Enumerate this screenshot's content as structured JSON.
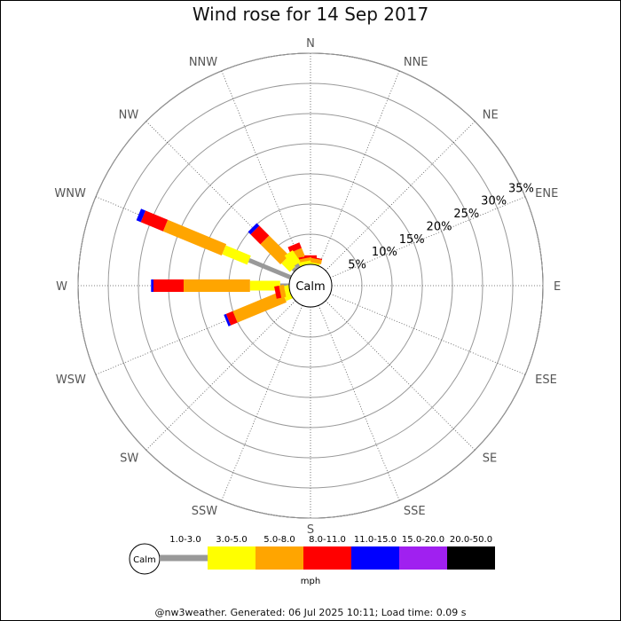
{
  "title": "Wind rose for 14 Sep 2017",
  "footer": "@nw3weather.  Generated: 06 Jul 2025 10:11; Load time: 0.09 s",
  "chart_data": {
    "type": "wind-rose",
    "title": "Wind rose for 14 Sep 2017",
    "center_label": "Calm",
    "directions": [
      "N",
      "NNE",
      "NE",
      "ENE",
      "E",
      "ESE",
      "SE",
      "SSE",
      "S",
      "SSW",
      "SW",
      "WSW",
      "W",
      "WNW",
      "NW",
      "NNW"
    ],
    "radial_ticks": [
      "5%",
      "10%",
      "15%",
      "20%",
      "25%",
      "30%",
      "35%"
    ],
    "radial_max_percent": 35,
    "bins": [
      {
        "label": "1.0-3.0",
        "color": "#999999"
      },
      {
        "label": "3.0-5.0",
        "color": "#ffff00"
      },
      {
        "label": "5.0-8.0",
        "color": "#ffa500"
      },
      {
        "label": "8.0-11.0",
        "color": "#ff0000"
      },
      {
        "label": "11.0-15.0",
        "color": "#0000ff"
      },
      {
        "label": "15.0-20.0",
        "color": "#a020f0"
      },
      {
        "label": "20.0-50.0",
        "color": "#000000"
      }
    ],
    "legend_unit": "mph",
    "frequencies_percent": {
      "N": [
        0,
        0.5,
        0.6,
        0.4,
        0,
        0,
        0
      ],
      "NNE": [
        0,
        0,
        0,
        0,
        0,
        0,
        0
      ],
      "NE": [
        0,
        0,
        0,
        0,
        0,
        0,
        0
      ],
      "ENE": [
        0,
        0,
        0,
        0,
        0,
        0,
        0
      ],
      "E": [
        0,
        0,
        0,
        0,
        0,
        0,
        0
      ],
      "ESE": [
        0,
        0,
        0,
        0,
        0,
        0,
        0
      ],
      "SE": [
        0,
        0,
        0,
        0,
        0,
        0,
        0
      ],
      "SSE": [
        0,
        0,
        0,
        0,
        0,
        0,
        0
      ],
      "S": [
        0,
        0,
        0,
        0,
        0,
        0,
        0
      ],
      "SSW": [
        0,
        0,
        0,
        0,
        0,
        0,
        0
      ],
      "SW": [
        0,
        0,
        0,
        0,
        0,
        0,
        0
      ],
      "WSW": [
        0,
        1.2,
        8.8,
        1.2,
        0.4,
        0,
        0
      ],
      "W": [
        1.5,
        5.0,
        11.0,
        5.0,
        0.4,
        0,
        0
      ],
      "WNW": [
        7.5,
        4.5,
        10.5,
        4.0,
        0.8,
        0,
        0
      ],
      "NW": [
        0.5,
        2.0,
        4.7,
        2.3,
        0.6,
        0,
        0
      ],
      "NNW": [
        0,
        1.4,
        1.4,
        1.0,
        0,
        0,
        0
      ]
    },
    "inner_frequencies_percent": {
      "N": [
        0,
        0.3,
        0.7,
        0.2,
        0,
        0,
        0
      ],
      "NNW": [
        0,
        0.6,
        0.5,
        0.3,
        0,
        0,
        0
      ],
      "NW": [
        0.7,
        2.3,
        0,
        0,
        0,
        0,
        0
      ],
      "WSW": [
        0,
        0.8,
        0.8,
        0.8,
        0,
        0,
        0
      ]
    }
  }
}
